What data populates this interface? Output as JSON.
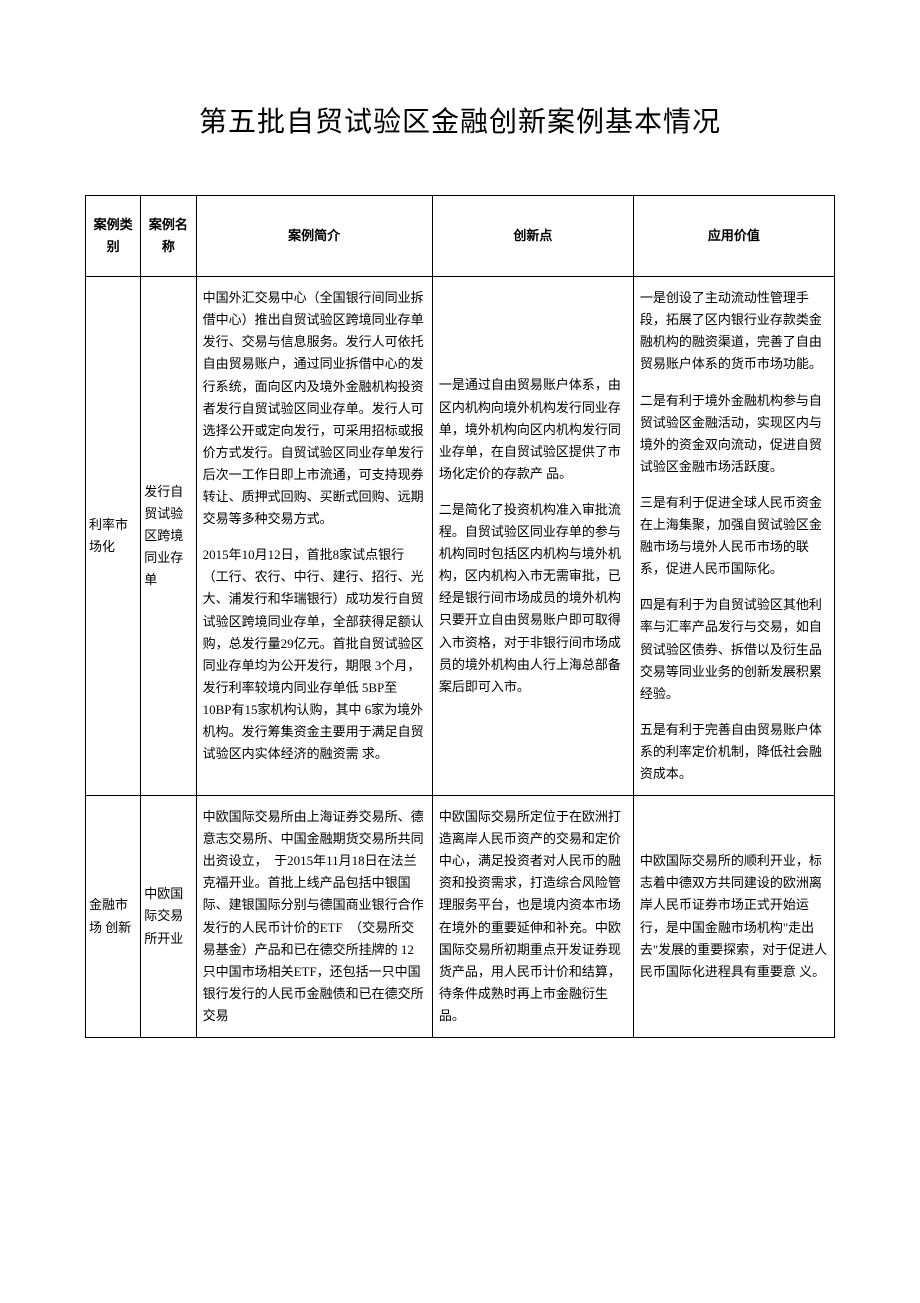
{
  "title": "第五批自贸试验区金融创新案例基本情况",
  "headers": {
    "category": "案例类别",
    "name": "案例名称",
    "summary": "案例简介",
    "innovation": "创新点",
    "value": "应用价值"
  },
  "rows": [
    {
      "category": "利率市场化",
      "name": "发行自贸试验区跨境同业存单",
      "summary_p1": "中国外汇交易中心（全国银行间同业拆借中心）推出自贸试验区跨境同业存单发行、交易与信息服务。发行人可依托自由贸易账户，通过同业拆借中心的发行系统，面向区内及境外金融机构投资者发行自贸试验区同业存单。发行人可选择公开或定向发行，可采用招标或报价方式发行。自贸试验区同业存单发行后次一工作日即上市流通，可支持现券转让、质押式回购、买断式回购、远期交易等多种交易方式。",
      "summary_p2": "2015年10月12日，首批8家试点银行（工行、农行、中行、建行、招行、光大、浦发行和华瑞银行）成功发行自贸试验区跨境同业存单，全部获得足额认购，总发行量29亿元。首批自贸试验区同业存单均为公开发行，期限 3个月，发行利率较境内同业存单低 5BP至10BP有15家机构认购，其中 6家为境外机构。发行筹集资金主要用于满足自贸试验区内实体经济的融资需 求。",
      "innovation_p1": "一是通过自由贸易账户体系，由区内机构向境外机构发行同业存单，境外机构向区内机构发行同业存单，在自贸试验区提供了市场化定价的存款产 品。",
      "innovation_p2": "二是简化了投资机构准入审批流程。自贸试验区同业存单的参与机构同时包括区内机构与境外机构，区内机构入市无需审批，已经是银行间市场成员的境外机构只要开立自由贸易账户即可取得入市资格，对于非银行间市场成员的境外机构由人行上海总部备案后即可入市。",
      "value_p1": "一是创设了主动流动性管理手段，拓展了区内银行业存款类金融机构的融资渠道，完善了自由贸易账户体系的货币市场功能。",
      "value_p2": "二是有利于境外金融机构参与自贸试验区金融活动，实现区内与境外的资金双向流动，促进自贸试验区金融市场活跃度。",
      "value_p3": "三是有利于促进全球人民币资金在上海集聚，加强自贸试验区金融市场与境外人民币市场的联系，促进人民币国际化。",
      "value_p4": "四是有利于为自贸试验区其他利率与汇率产品发行与交易，如自贸试验区债券、拆借以及衍生品交易等同业业务的创新发展积累经验。",
      "value_p5": "五是有利于完善自由贸易账户体系的利率定价机制，降低社会融资成本。"
    },
    {
      "category": "金融市场 创新",
      "name": "中欧国际交易所开业",
      "summary": "中欧国际交易所由上海证券交易所、德意志交易所、中国金融期货交易所共同出资设立，　于2015年11月18日在法兰克福开业。首批上线产品包括中银国际、建银国际分别与德国商业银行合作发行的人民币计价的ETF　（交易所交易基金）产品和已在德交所挂牌的 12只中国市场相关ETF，还包括一只中国银行发行的人民币金融债和已在德交所交易",
      "innovation": "中欧国际交易所定位于在欧洲打造离岸人民币资产的交易和定价中心，满足投资者对人民币的融资和投资需求，打造综合风险管理服务平台，也是境内资本市场在境外的重要延伸和补充。中欧国际交易所初期重点开发证券现货产品，用人民币计价和结算，待条件成熟时再上市金融衍生品。",
      "value": "中欧国际交易所的顺利开业，标志着中德双方共同建设的欧洲离岸人民币证券市场正式开始运行，是中国金融市场机构\"走出去\"发展的重要探索，对于促进人民币国际化进程具有重要意 义。"
    }
  ]
}
